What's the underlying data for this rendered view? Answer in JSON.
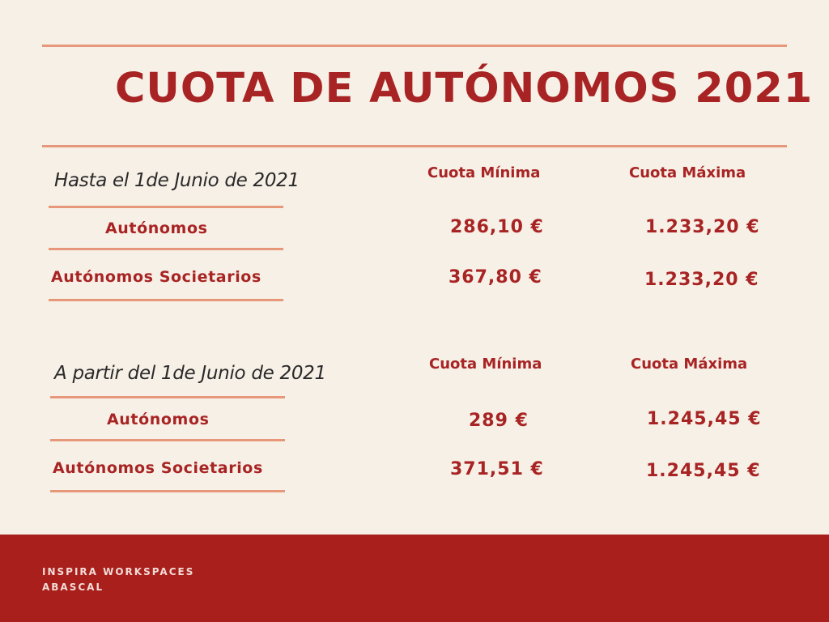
{
  "title": "CUOTA DE AUTÓNOMOS 2021",
  "sections": [
    {
      "period": "Hasta el 1de Junio de 2021",
      "col_min": "Cuota Mínima",
      "col_max": "Cuota Máxima",
      "rows": [
        {
          "label": "Autónomos",
          "min": "286,10 €",
          "max": "1.233,20 €"
        },
        {
          "label": "Autónomos Societarios",
          "min": "367,80 €",
          "max": "1.233,20 €"
        }
      ]
    },
    {
      "period": "A partir del 1de Junio de 2021",
      "col_min": "Cuota Mínima",
      "col_max": "Cuota Máxima",
      "rows": [
        {
          "label": "Autónomos",
          "min": "289 €",
          "max": "1.245,45 €"
        },
        {
          "label": "Autónomos Societarios",
          "min": "371,51 €",
          "max": "1.245,45 €"
        }
      ]
    }
  ],
  "footer": {
    "line1": "INSPIRA WORKSPACES",
    "line2": "ABASCAL"
  },
  "colors": {
    "background": "#f7f0e6",
    "accent_red": "#a82424",
    "footer_red": "#a81f1c",
    "rule_salmon": "#e8987a"
  }
}
